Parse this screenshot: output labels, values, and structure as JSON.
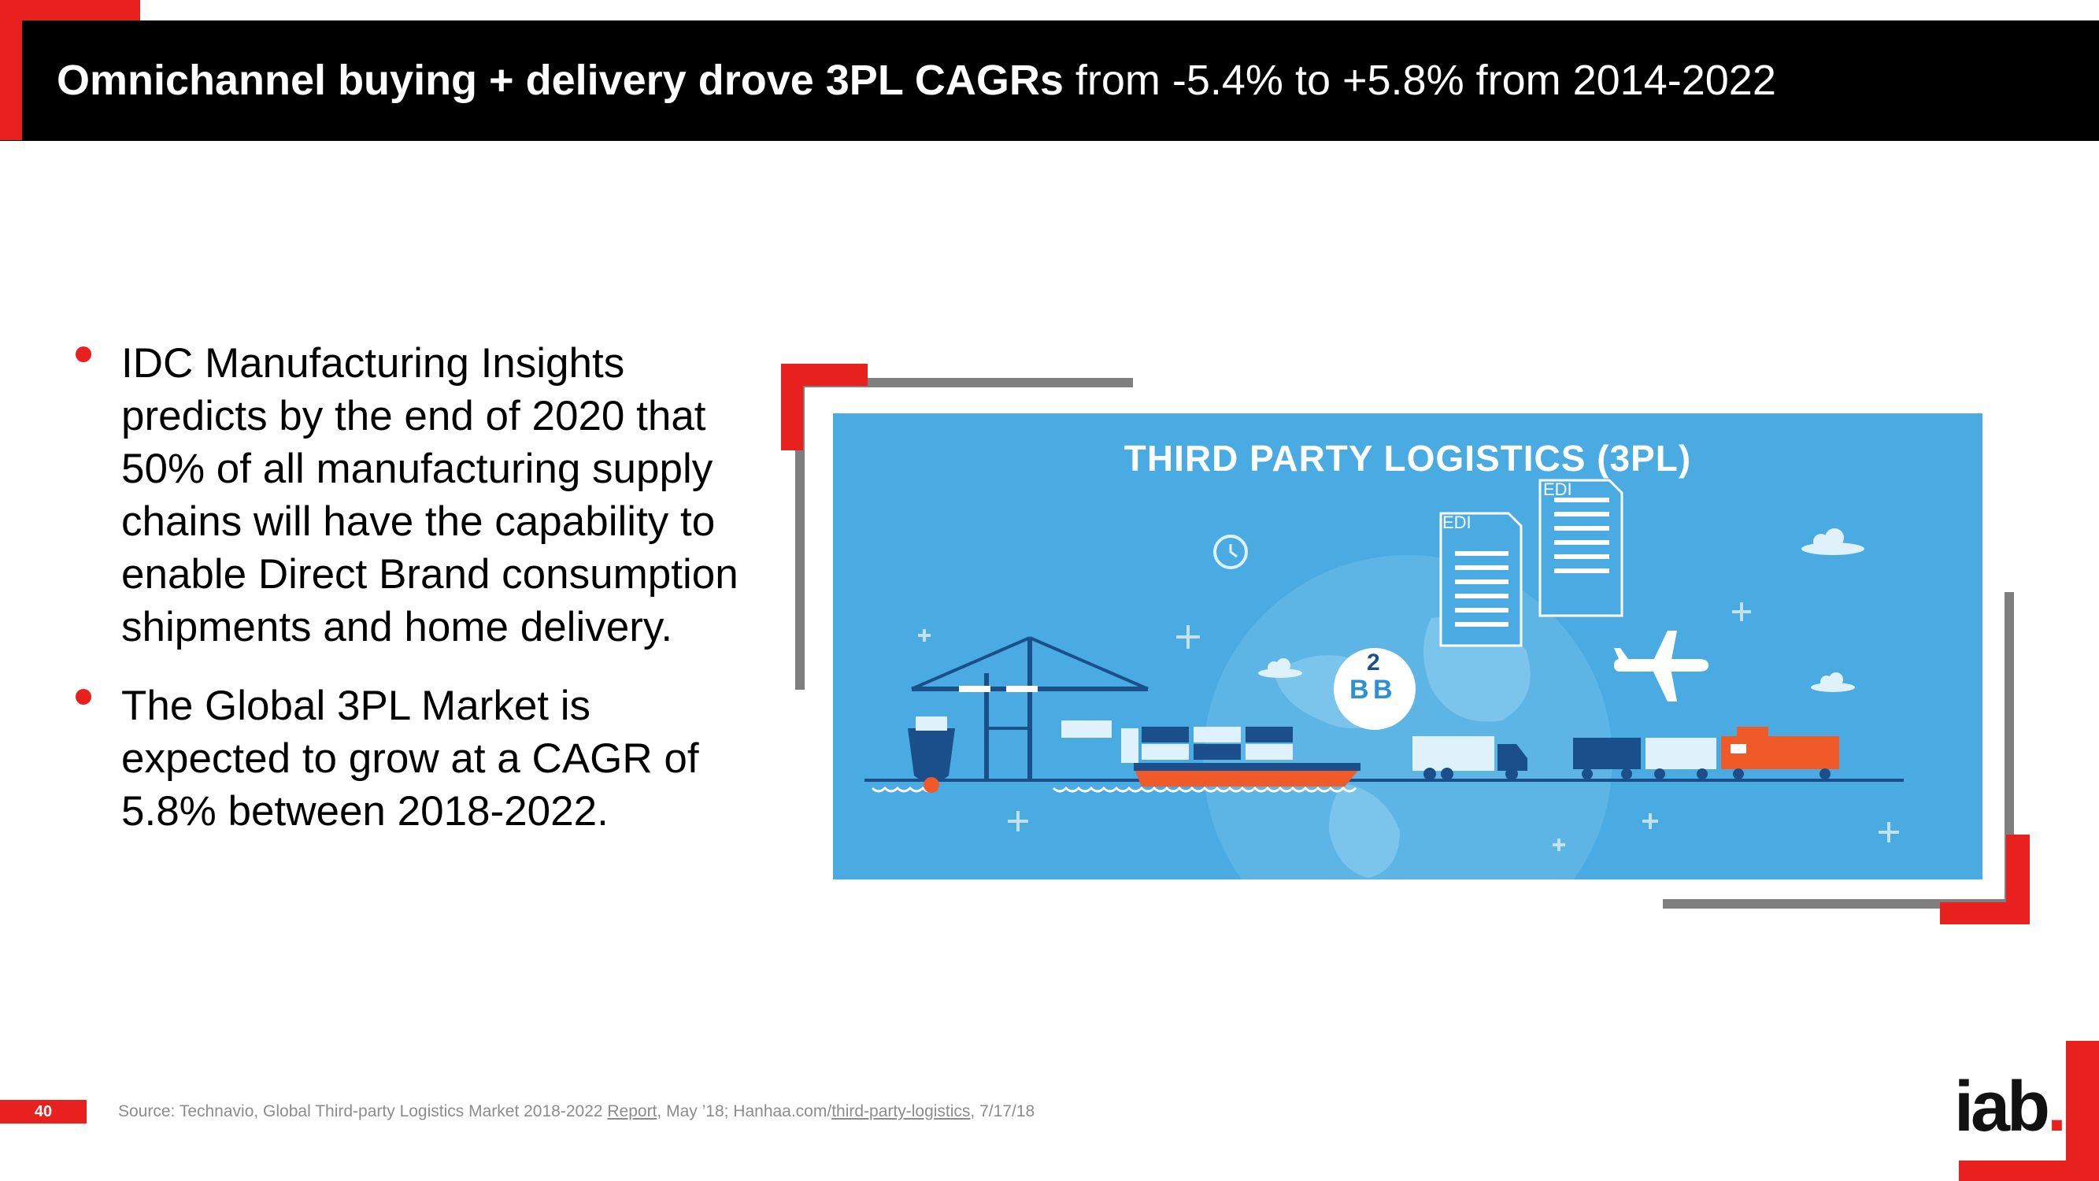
{
  "title": {
    "bold": "Omnichannel buying + delivery drove 3PL CAGRs",
    "regular": " from -5.4% to +5.8% from 2014-2022"
  },
  "bullets": [
    "IDC Manufacturing Insights predicts by the end of 2020 that 50% of all manufacturing supply chains will have the capability to enable Direct Brand consumption shipments and home delivery.",
    "The Global 3PL Market is expected to grow at a CAGR of 5.8% between 2018-2022."
  ],
  "illustration": {
    "title": "THIRD PARTY LOGISTICS (3PL)",
    "doc_label_1": "EDI",
    "doc_label_2": "EDI",
    "b2b_top": "2",
    "b2b_left": "B",
    "b2b_right": "B",
    "icons": [
      "clock-icon",
      "cloud-icon",
      "airplane-icon",
      "document-icon",
      "globe-icon",
      "crane-icon",
      "ship-icon",
      "truck-icon",
      "train-icon"
    ],
    "background_color": "#4aaae2"
  },
  "footer": {
    "page_number": "40",
    "source_prefix": "Source: Technavio, Global Third-party Logistics Market 2018-2022 ",
    "source_link1": "Report",
    "source_middle": ", May ’18; Hanhaa.com/",
    "source_link2": "third-party-logistics",
    "source_suffix": ", 7/17/18",
    "logo_text": "iab",
    "logo_dot": "."
  },
  "colors": {
    "accent_red": "#e8211f",
    "frame_gray": "#7f7f7f",
    "title_bar": "#000000"
  }
}
